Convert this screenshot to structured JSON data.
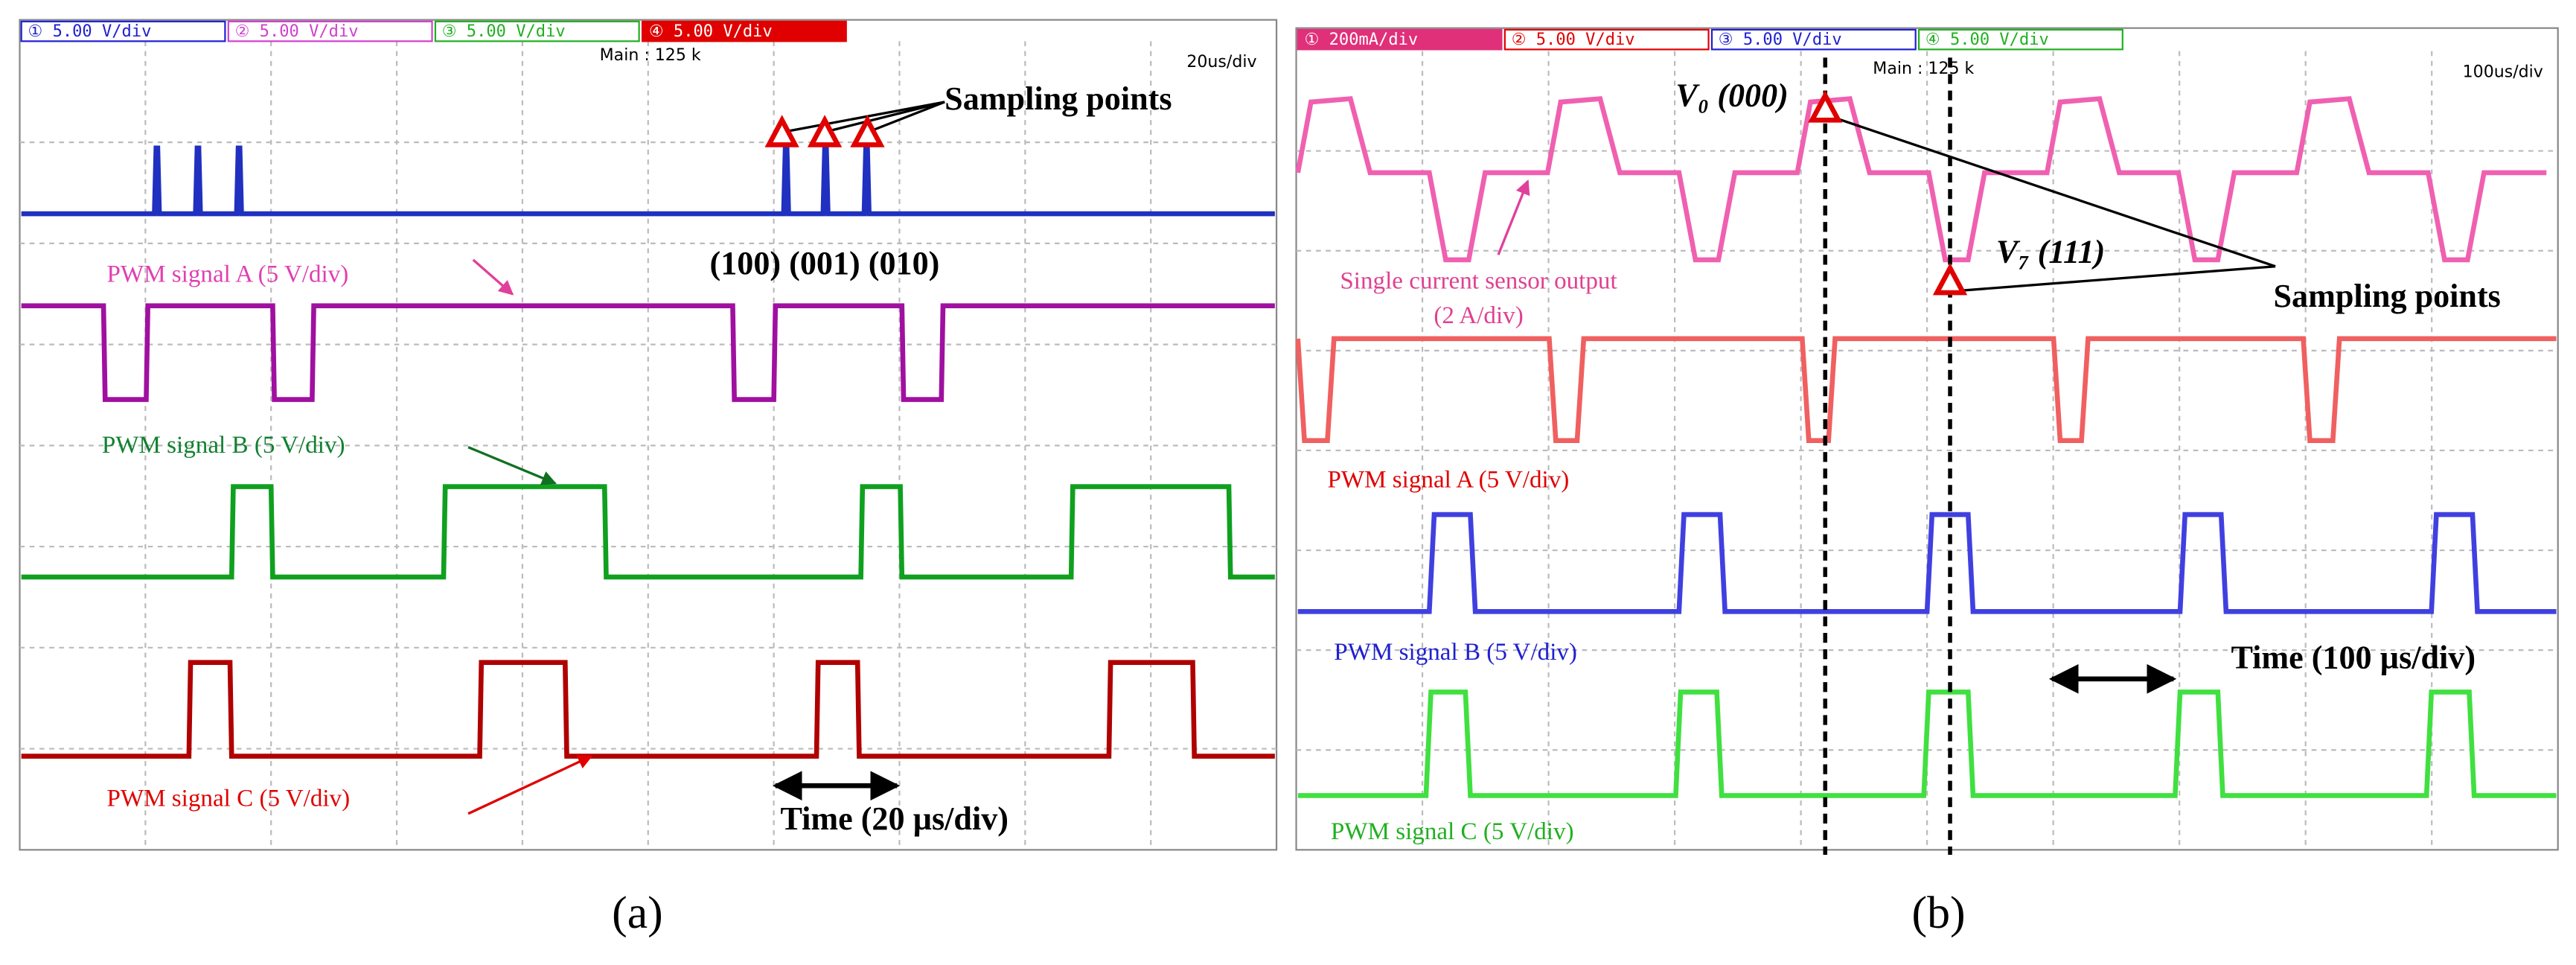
{
  "panel_a": {
    "channels": [
      "① 5.00 V/div",
      "② 5.00 V/div",
      "③ 5.00 V/div",
      "④ 5.00 V/div"
    ],
    "main": "Main : 125 k",
    "timebase": "20us/div",
    "sampling": "Sampling points",
    "vectors": "(100) (001) (010)",
    "pwm_a": "PWM signal A (5 V/div)",
    "pwm_b": "PWM signal B (5 V/div)",
    "pwm_c": "PWM signal C (5 V/div)",
    "time": "Time (20 µs/div)",
    "caption": "(a)"
  },
  "panel_b": {
    "channels": [
      "① 200mA/div",
      "② 5.00 V/div",
      "③ 5.00 V/div",
      "④ 5.00 V/div"
    ],
    "main": "Main : 125 k",
    "timebase": "100us/div",
    "v0": "V₀ (000)",
    "v7": "V₇ (111)",
    "sensor": "Single current sensor output",
    "sensor_scale": "(2 A/div)",
    "sampling": "Sampling points",
    "pwm_a": "PWM signal A (5 V/div)",
    "pwm_b": "PWM signal B (5 V/div)",
    "pwm_c": "PWM signal C (5 V/div)",
    "time": "Time (100 µs/div)",
    "caption": "(b)"
  }
}
